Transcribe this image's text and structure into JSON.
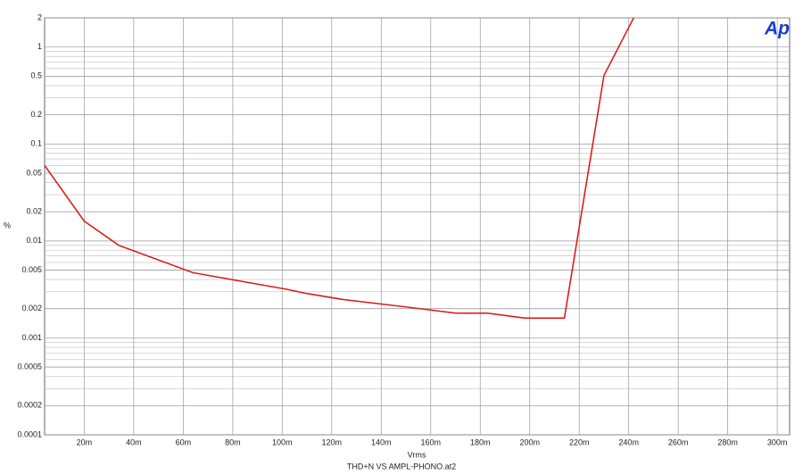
{
  "chart_data": {
    "type": "line",
    "logo": "Ap",
    "xlabel": "Vrms",
    "ylabel": "%",
    "footer": "THD+N VS AMPL-PHONO.at2",
    "x": [
      4,
      20,
      34,
      64,
      101,
      109,
      124,
      149,
      170,
      183,
      198,
      214,
      230,
      242
    ],
    "series": [
      {
        "color": "#dd1111",
        "values": [
          0.06,
          0.016,
          0.009,
          0.0047,
          0.0032,
          0.0029,
          0.0025,
          0.0021,
          0.0018,
          0.0018,
          0.0016,
          0.0016,
          0.51,
          2
        ]
      }
    ],
    "xlim": [
      4,
      305
    ],
    "xticks": [
      {
        "value": 20,
        "label": "20m"
      },
      {
        "value": 40,
        "label": "40m"
      },
      {
        "value": 60,
        "label": "60m"
      },
      {
        "value": 80,
        "label": "80m"
      },
      {
        "value": 100,
        "label": "100m"
      },
      {
        "value": 120,
        "label": "120m"
      },
      {
        "value": 140,
        "label": "140m"
      },
      {
        "value": 160,
        "label": "160m"
      },
      {
        "value": 180,
        "label": "180m"
      },
      {
        "value": 200,
        "label": "200m"
      },
      {
        "value": 220,
        "label": "220m"
      },
      {
        "value": 240,
        "label": "240m"
      },
      {
        "value": 260,
        "label": "260m"
      },
      {
        "value": 280,
        "label": "280m"
      },
      {
        "value": 300,
        "label": "300m"
      }
    ],
    "ylim": [
      0.0001,
      2
    ],
    "ylog": true,
    "yticks": [
      2,
      1,
      0.5,
      0.2,
      0.1,
      0.05,
      0.02,
      0.01,
      0.005,
      0.002,
      0.001,
      0.0005,
      0.0002,
      0.0001
    ],
    "grid": true,
    "minor_grid": true
  }
}
